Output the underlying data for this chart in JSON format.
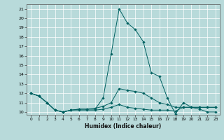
{
  "title": "",
  "xlabel": "Humidex (Indice chaleur)",
  "xlim": [
    -0.5,
    23.5
  ],
  "ylim": [
    9.7,
    21.5
  ],
  "yticks": [
    10,
    11,
    12,
    13,
    14,
    15,
    16,
    17,
    18,
    19,
    20,
    21
  ],
  "xticks": [
    0,
    1,
    2,
    3,
    4,
    5,
    6,
    7,
    8,
    9,
    10,
    11,
    12,
    13,
    14,
    15,
    16,
    17,
    18,
    19,
    20,
    21,
    22,
    23
  ],
  "bg_color": "#b8dada",
  "grid_color": "#9ecece",
  "line_color": "#006060",
  "series": [
    {
      "x": [
        0,
        1,
        2,
        3,
        4,
        5,
        6,
        7,
        8,
        9,
        10,
        11,
        12,
        13,
        14,
        15,
        16,
        17,
        18,
        19,
        20,
        21,
        22,
        23
      ],
      "y": [
        12,
        11.7,
        11,
        10.2,
        10.0,
        10.2,
        10.3,
        10.3,
        10.3,
        11.5,
        16.2,
        21.0,
        19.5,
        18.8,
        17.5,
        14.2,
        13.8,
        11.5,
        9.8,
        11.0,
        10.5,
        10.3,
        10.0,
        10.0
      ]
    },
    {
      "x": [
        0,
        1,
        2,
        3,
        4,
        5,
        6,
        7,
        8,
        9,
        10,
        11,
        12,
        13,
        14,
        15,
        16,
        17,
        18,
        19,
        20,
        21,
        22,
        23
      ],
      "y": [
        12,
        11.7,
        11,
        10.2,
        10.0,
        10.2,
        10.3,
        10.3,
        10.4,
        10.6,
        11.0,
        12.5,
        12.3,
        12.2,
        12.0,
        11.5,
        11.0,
        10.8,
        10.5,
        10.5,
        10.5,
        10.5,
        10.5,
        10.5
      ]
    },
    {
      "x": [
        0,
        1,
        2,
        3,
        4,
        5,
        6,
        7,
        8,
        9,
        10,
        11,
        12,
        13,
        14,
        15,
        16,
        17,
        18,
        19,
        20,
        21,
        22,
        23
      ],
      "y": [
        12,
        11.7,
        11,
        10.2,
        10.0,
        10.2,
        10.2,
        10.2,
        10.2,
        10.3,
        10.5,
        10.8,
        10.5,
        10.4,
        10.3,
        10.2,
        10.2,
        10.2,
        10.1,
        10.5,
        10.5,
        10.5,
        10.5,
        10.5
      ]
    }
  ]
}
